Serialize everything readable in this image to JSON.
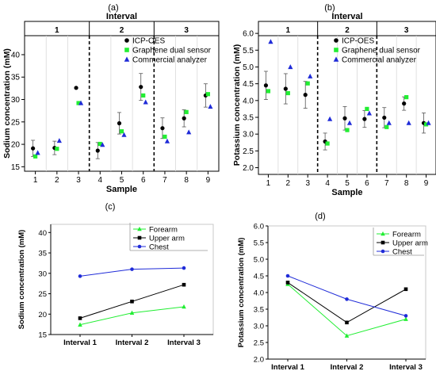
{
  "panels": {
    "a": {
      "letter": "(a)"
    },
    "b": {
      "letter": "(b)"
    },
    "c": {
      "letter": "(c)"
    },
    "d": {
      "letter": "(d)"
    }
  },
  "chart_data": [
    {
      "id": "a",
      "type": "scatter",
      "header": "Interval",
      "intervals": [
        "1",
        "2",
        "3"
      ],
      "xlabel": "Sample",
      "ylabel": "Sodium concentration (mM)",
      "x": [
        1,
        2,
        3,
        4,
        5,
        6,
        7,
        8,
        9
      ],
      "xlim": [
        0.5,
        9.5
      ],
      "ylim": [
        14,
        43
      ],
      "yticks": [
        15,
        20,
        25,
        30,
        35,
        40
      ],
      "legend_position": "top-right",
      "series": [
        {
          "name": "ICP-OES",
          "marker": "circle",
          "color": "#000000",
          "values": [
            19.1,
            19.2,
            32.6,
            18.6,
            24.7,
            32.8,
            23.6,
            25.8,
            30.9
          ],
          "errors": [
            1.8,
            1.5,
            0,
            1.8,
            2.4,
            3.0,
            2.3,
            1.9,
            2.6
          ]
        },
        {
          "name": "Graphene dual sensor",
          "marker": "square",
          "color": "#22ee33",
          "values": [
            17.3,
            19.0,
            29.2,
            20.1,
            22.9,
            30.9,
            21.7,
            27.2,
            31.2
          ]
        },
        {
          "name": "Commercial analyzer",
          "marker": "triangle",
          "color": "#1f2bd8",
          "values": [
            18.1,
            20.8,
            29.2,
            19.9,
            22.1,
            29.4,
            20.7,
            22.7,
            28.4
          ]
        }
      ]
    },
    {
      "id": "b",
      "type": "scatter",
      "header": "Interval",
      "intervals": [
        "1",
        "2",
        "3"
      ],
      "xlabel": "Sample",
      "ylabel": "Potassium concentration (mM)",
      "x": [
        1,
        2,
        3,
        4,
        5,
        6,
        7,
        8,
        9
      ],
      "xlim": [
        0.5,
        9.5
      ],
      "ylim": [
        1.8,
        6.05
      ],
      "yticks": [
        2.0,
        2.5,
        3.0,
        3.5,
        4.0,
        4.5,
        5.0,
        5.5,
        6.0
      ],
      "legend_position": "top-right",
      "series": [
        {
          "name": "ICP-OES",
          "marker": "circle",
          "color": "#000000",
          "values": [
            4.45,
            4.35,
            4.17,
            2.78,
            3.47,
            3.45,
            3.49,
            3.91,
            3.33
          ],
          "errors": [
            0.42,
            0.45,
            0.4,
            0.25,
            0.35,
            0.25,
            0.3,
            0.2,
            0.3
          ]
        },
        {
          "name": "Graphene dual sensor",
          "marker": "square",
          "color": "#22ee33",
          "values": [
            4.28,
            4.22,
            4.51,
            2.72,
            3.12,
            3.75,
            3.21,
            4.1,
            3.29
          ]
        },
        {
          "name": "Commercial analyzer",
          "marker": "triangle",
          "color": "#1f2bd8",
          "values": [
            5.75,
            5.0,
            4.72,
            3.45,
            3.33,
            3.62,
            3.33,
            3.33,
            3.33
          ]
        }
      ]
    },
    {
      "id": "c",
      "type": "line",
      "categories": [
        "Interval 1",
        "Interval 2",
        "Interval 3"
      ],
      "xlabel": "",
      "ylabel": "Sodium concentration (mM)",
      "ylim": [
        15,
        42
      ],
      "yticks": [
        15,
        20,
        25,
        30,
        35,
        40
      ],
      "legend_position": "top-right",
      "series": [
        {
          "name": "Forearm",
          "marker": "triangle",
          "color": "#22ee33",
          "values": [
            17.4,
            20.3,
            21.8
          ]
        },
        {
          "name": "Upper arm",
          "marker": "square",
          "color": "#000000",
          "values": [
            19.0,
            23.1,
            27.2
          ]
        },
        {
          "name": "Chest",
          "marker": "circle",
          "color": "#1f2bd8",
          "values": [
            29.3,
            31.0,
            31.3
          ]
        }
      ]
    },
    {
      "id": "d",
      "type": "line",
      "categories": [
        "Interval 1",
        "Interval 2",
        "Interval 3"
      ],
      "xlabel": "",
      "ylabel": "Potassium concentration (mM)",
      "ylim": [
        2.0,
        6.0
      ],
      "yticks": [
        2.0,
        2.5,
        3.0,
        3.5,
        4.0,
        4.5,
        5.0,
        5.5,
        6.0
      ],
      "legend_position": "top-right",
      "series": [
        {
          "name": "Forearm",
          "marker": "triangle",
          "color": "#22ee33",
          "values": [
            4.25,
            2.7,
            3.2
          ]
        },
        {
          "name": "Upper arm",
          "marker": "square",
          "color": "#000000",
          "values": [
            4.3,
            3.1,
            4.1
          ]
        },
        {
          "name": "Chest",
          "marker": "circle",
          "color": "#1f2bd8",
          "values": [
            4.5,
            3.8,
            3.3
          ]
        }
      ]
    }
  ]
}
